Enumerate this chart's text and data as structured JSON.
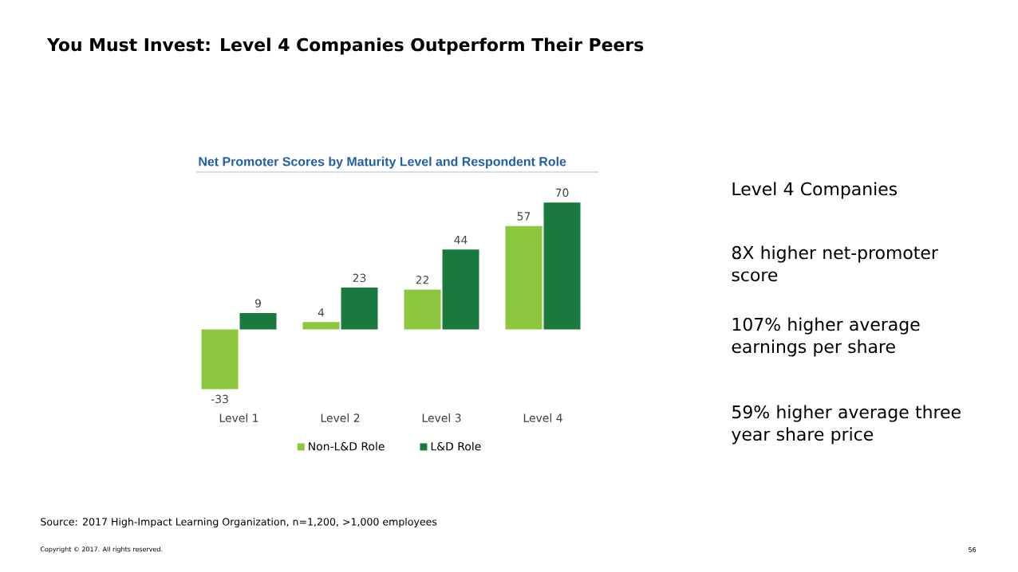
{
  "chart_data": {
    "type": "bar",
    "title": "You Must Invest: Level 4 Companies Outperform Their Peers",
    "subtitle": "Net Promoter Scores by Maturity Level and Respondent Role",
    "categories": [
      "Level 1",
      "Level 2",
      "Level 3",
      "Level 4"
    ],
    "series": [
      {
        "name": "Non-L&D Role",
        "color": "#8dc63f",
        "values": [
          -33,
          4,
          22,
          57
        ]
      },
      {
        "name": "L&D Role",
        "color": "#1a7a3e",
        "values": [
          9,
          23,
          44,
          70
        ]
      }
    ],
    "data_labels": true,
    "legend": "bottom",
    "annotations": [
      "Level 4 Companies",
      "8X higher net-promoter score",
      "107% higher average earnings per share",
      "59% higher average three year share price",
      "Source: 2017 High-Impact Learning Organization, n=1,200, >1,000 employees",
      "Copyright © 2017. All rights reserved.",
      "56"
    ]
  }
}
